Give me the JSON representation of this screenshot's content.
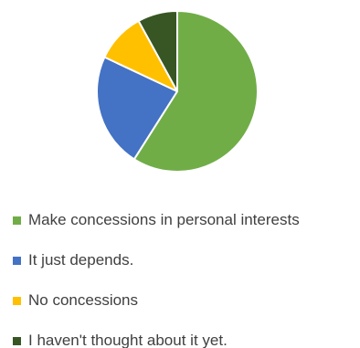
{
  "chart_data": {
    "type": "pie",
    "title": "",
    "slices": [
      {
        "label": "Make concessions in personal interests",
        "value": 59,
        "color": "#70ad47"
      },
      {
        "label": "It just depends.",
        "value": 23,
        "color": "#4472c4"
      },
      {
        "label": "No concessions",
        "value": 10,
        "color": "#ffc000"
      },
      {
        "label": "I haven't thought about it yet.",
        "value": 8,
        "color": "#375623"
      }
    ],
    "legend_position": "bottom"
  }
}
